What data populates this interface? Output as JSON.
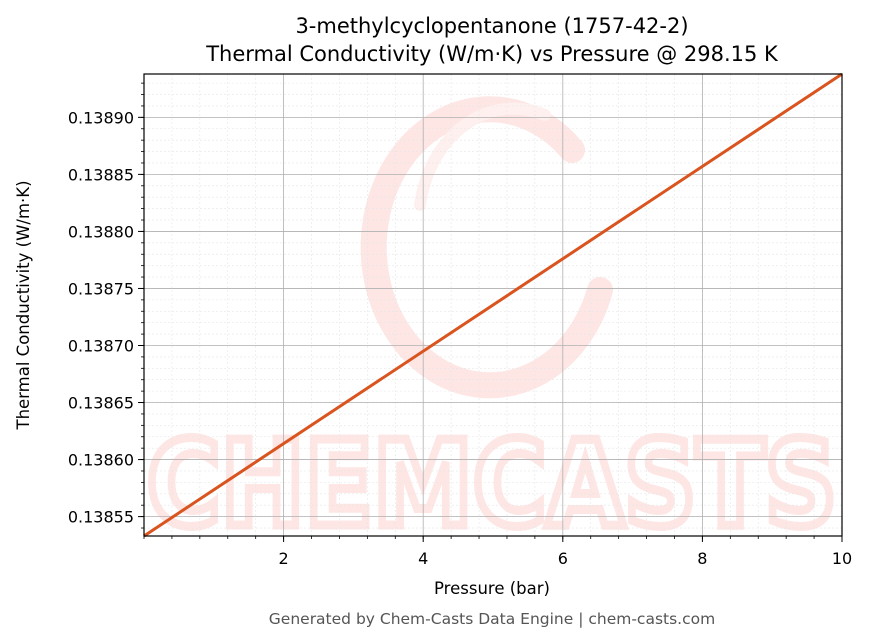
{
  "chart_data": {
    "type": "line",
    "title_line1": "3-methylcyclopentanone (1757-42-2)",
    "title_line2": "Thermal Conductivity (W/m·K) vs Pressure @ 298.15 K",
    "xlabel": "Pressure (bar)",
    "ylabel": "Thermal Conductivity (W/m·K)",
    "xlim": [
      0.0,
      10.0
    ],
    "ylim": [
      0.138533,
      0.138938
    ],
    "x_ticks": [
      2,
      4,
      6,
      8,
      10
    ],
    "x_tick_labels": [
      "2",
      "4",
      "6",
      "8",
      "10"
    ],
    "y_ticks": [
      0.13855,
      0.1386,
      0.13865,
      0.1387,
      0.13875,
      0.1388,
      0.13885,
      0.1389
    ],
    "y_tick_labels": [
      "0.13855",
      "0.13860",
      "0.13865",
      "0.13870",
      "0.13875",
      "0.13880",
      "0.13885",
      "0.13890"
    ],
    "grid": true,
    "series": [
      {
        "color": "#d9541e",
        "x": [
          0.0,
          10.0
        ],
        "y": [
          0.138533,
          0.138938
        ]
      }
    ]
  },
  "watermark": {
    "text": "CHEMCASTS",
    "color": "#fde6e4"
  },
  "footer": "Generated by Chem-Casts Data Engine | chem-casts.com"
}
